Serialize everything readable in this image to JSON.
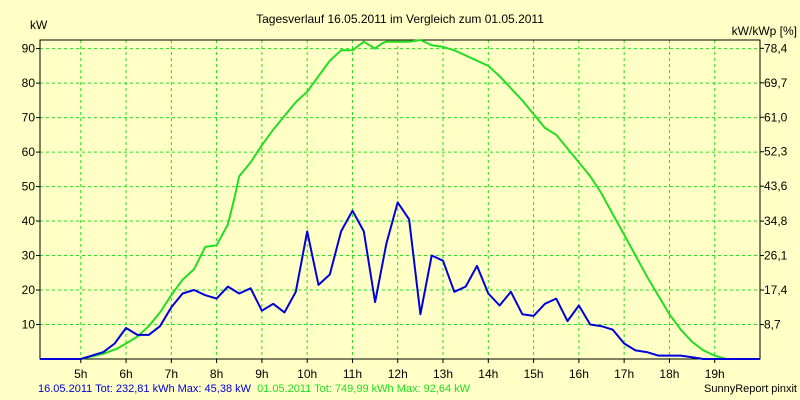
{
  "chart_data": {
    "type": "line",
    "title": "Tagesverlauf 16.05.2011 im Vergleich zum 01.05.2011",
    "ylabel_left": "kW",
    "ylabel_right": "kW/kWp [%]",
    "xlim": [
      4.1,
      20.0
    ],
    "ylim": [
      0,
      92.5
    ],
    "y2lim": [
      0,
      80.5
    ],
    "grid": true,
    "x_ticks": [
      {
        "value": 5,
        "label": "5h"
      },
      {
        "value": 6,
        "label": "6h"
      },
      {
        "value": 7,
        "label": "7h"
      },
      {
        "value": 8,
        "label": "8h"
      },
      {
        "value": 9,
        "label": "9h"
      },
      {
        "value": 10,
        "label": "10h"
      },
      {
        "value": 11,
        "label": "11h"
      },
      {
        "value": 12,
        "label": "12h"
      },
      {
        "value": 13,
        "label": "13h"
      },
      {
        "value": 14,
        "label": "14h"
      },
      {
        "value": 15,
        "label": "15h"
      },
      {
        "value": 16,
        "label": "16h"
      },
      {
        "value": 17,
        "label": "17h"
      },
      {
        "value": 18,
        "label": "18h"
      },
      {
        "value": 19,
        "label": "19h"
      }
    ],
    "y_ticks_left": [
      {
        "value": 10,
        "label": "10"
      },
      {
        "value": 20,
        "label": "20"
      },
      {
        "value": 30,
        "label": "30"
      },
      {
        "value": 40,
        "label": "40"
      },
      {
        "value": 50,
        "label": "50"
      },
      {
        "value": 60,
        "label": "60"
      },
      {
        "value": 70,
        "label": "70"
      },
      {
        "value": 80,
        "label": "80"
      },
      {
        "value": 90,
        "label": "90"
      }
    ],
    "y_ticks_right": [
      {
        "value": 8.7,
        "label": "8,7"
      },
      {
        "value": 17.4,
        "label": "17,4"
      },
      {
        "value": 26.1,
        "label": "26,1"
      },
      {
        "value": 34.8,
        "label": "34,8"
      },
      {
        "value": 43.6,
        "label": "43,6"
      },
      {
        "value": 52.3,
        "label": "52,3"
      },
      {
        "value": 61.0,
        "label": "61,0"
      },
      {
        "value": 69.7,
        "label": "69,7"
      },
      {
        "value": 78.4,
        "label": "78,4"
      }
    ],
    "series": [
      {
        "name": "01.05.2011",
        "color": "#22dd22",
        "summary": "01.05.2011 Tot: 749,99 kWh Max: 92,64 kW",
        "x": [
          4.1,
          5.0,
          5.5,
          5.8,
          6.0,
          6.25,
          6.5,
          6.75,
          7.0,
          7.25,
          7.5,
          7.75,
          8.0,
          8.25,
          8.4,
          8.5,
          8.75,
          9.0,
          9.25,
          9.5,
          9.75,
          10.0,
          10.25,
          10.5,
          10.75,
          11.0,
          11.25,
          11.5,
          11.65,
          11.75,
          11.9,
          12.0,
          12.25,
          12.5,
          12.75,
          13.0,
          13.25,
          13.5,
          13.75,
          14.0,
          14.25,
          14.5,
          14.75,
          15.0,
          15.25,
          15.5,
          15.75,
          16.0,
          16.25,
          16.5,
          16.75,
          17.0,
          17.25,
          17.5,
          17.75,
          18.0,
          18.25,
          18.5,
          18.75,
          19.0,
          19.25,
          19.5,
          20.0
        ],
        "values": [
          0,
          0,
          1.5,
          3,
          4.5,
          6.5,
          9.5,
          13.5,
          18.5,
          23,
          26,
          32.5,
          33,
          39,
          47,
          53,
          57,
          62,
          66.5,
          70.5,
          74.5,
          77.5,
          82,
          86.5,
          89.5,
          89.5,
          92,
          90,
          91.5,
          92,
          92,
          92,
          92,
          92.5,
          91,
          90.5,
          89.5,
          88,
          86.5,
          85,
          82,
          78.5,
          75,
          71,
          67,
          65,
          61,
          57,
          53,
          48,
          42,
          36,
          30,
          24,
          18.5,
          13,
          8.5,
          5,
          2.5,
          1,
          0,
          0,
          0
        ]
      },
      {
        "name": "16.05.2011",
        "color": "#0000dd",
        "summary": "16.05.2011 Tot: 232,81 kWh Max: 45,38 kW",
        "x": [
          4.1,
          5.0,
          5.25,
          5.5,
          5.75,
          6.0,
          6.25,
          6.5,
          6.75,
          7.0,
          7.25,
          7.5,
          7.75,
          8.0,
          8.25,
          8.5,
          8.75,
          9.0,
          9.25,
          9.5,
          9.75,
          10.0,
          10.25,
          10.5,
          10.75,
          11.0,
          11.25,
          11.5,
          11.75,
          12.0,
          12.25,
          12.5,
          12.75,
          13.0,
          13.25,
          13.5,
          13.75,
          14.0,
          14.25,
          14.5,
          14.75,
          15.0,
          15.25,
          15.5,
          15.75,
          16.0,
          16.25,
          16.5,
          16.75,
          17.0,
          17.25,
          17.5,
          17.75,
          18.0,
          18.25,
          18.5,
          18.75,
          19.0,
          19.25,
          19.5,
          20.0
        ],
        "values": [
          0,
          0,
          1,
          2,
          4.5,
          9,
          7,
          7,
          9.5,
          15,
          19,
          20,
          18.5,
          17.5,
          21,
          19,
          20.5,
          14,
          16,
          13.5,
          19.5,
          37,
          21.5,
          24.5,
          37,
          43,
          37,
          16.5,
          33.5,
          45.4,
          40.5,
          13,
          30,
          28.5,
          19.5,
          21,
          27,
          19,
          15.5,
          19.5,
          13,
          12.5,
          16,
          17.5,
          11,
          15.5,
          10,
          9.5,
          8.5,
          4.5,
          2.5,
          2,
          1,
          1,
          1,
          0.5,
          0,
          0,
          0,
          0,
          0
        ]
      }
    ],
    "footer_right": "SunnyReport pinxit"
  },
  "colors": {
    "background": "#ffffc6",
    "grid": "#22dd22",
    "axis": "#000000"
  }
}
